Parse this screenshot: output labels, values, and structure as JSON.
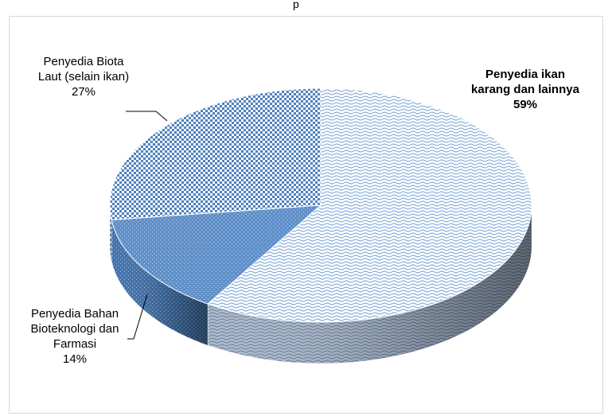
{
  "chart_data": {
    "type": "pie",
    "title": "",
    "title_fragment_visible": "p",
    "slices": [
      {
        "name": "Penyedia ikan karang dan lainnya",
        "label_lines": [
          "Penyedia ikan",
          "karang dan lainnya"
        ],
        "value": 59,
        "pct_label": "59%",
        "pattern": "wave",
        "color": "#4f81bd",
        "bold": true
      },
      {
        "name": "Penyedia Bahan Bioteknologi dan Farmasi",
        "label_lines": [
          "Penyedia Bahan",
          "Bioteknologi dan",
          "Farmasi"
        ],
        "value": 14,
        "pct_label": "14%",
        "pattern": "dots",
        "color": "#4f81bd",
        "bold": false
      },
      {
        "name": "Penyedia Biota Laut (selain ikan)",
        "label_lines": [
          "Penyedia Biota",
          "Laut (selain ikan)"
        ],
        "value": 27,
        "pct_label": "27%",
        "pattern": "checker",
        "color": "#4f81bd",
        "bold": false
      }
    ],
    "style": "3d-pie",
    "legend": "none"
  }
}
